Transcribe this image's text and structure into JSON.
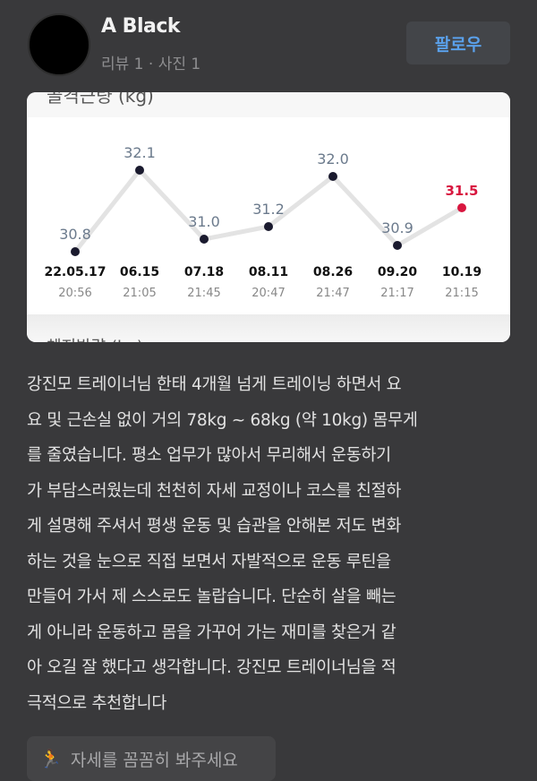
{
  "profile": {
    "name": "A Black",
    "meta": "리뷰 1 · 사진 1",
    "follow_label": "팔로우"
  },
  "chart_card": {
    "top_title": "골격근량 (kg)",
    "bottom_title": "체지방량 (kg)"
  },
  "chart_data": {
    "type": "line",
    "categories": [
      "22.05.17",
      "06.15",
      "07.18",
      "08.11",
      "08.26",
      "09.20",
      "10.19"
    ],
    "times": [
      "20:56",
      "21:05",
      "21:45",
      "20:47",
      "21:47",
      "21:17",
      "21:15"
    ],
    "values": [
      30.8,
      32.1,
      31.0,
      31.2,
      32.0,
      30.9,
      31.5
    ],
    "value_labels": [
      "30.8",
      "32.1",
      "31.0",
      "31.2",
      "32.0",
      "30.9",
      "31.5"
    ],
    "highlight_index": 6,
    "colors": {
      "point": "#1a1a2e",
      "highlight": "#d8163f",
      "line": "#e3e3e3",
      "label": "#6b7a8c"
    }
  },
  "review": {
    "lines": [
      "강진모 트레이너님 한태 4개월 넘게 트레이닝 하면서 요",
      "요 및 근손실 없이 거의 78kg ~ 68kg (약 10kg) 몸무게",
      "를 줄였습니다. 평소 업무가 많아서 무리해서 운동하기",
      "가 부담스러웠는데 천천히 자세 교정이나 코스를 친절하",
      "게 설명해 주셔서 평생 운동 및 습관을 안해본 저도 변화",
      "하는 것을 눈으로 직접 보면서 자발적으로 운동 루틴을",
      "만들어 가서 제 스스로도 놀랍습니다. 단순히 살을 빼는",
      "게 아니라 운동하고 몸을 가꾸어 가는 재미를 찾은거 같",
      "아 오길 잘 했다고 생각합니다. 강진모 트레이너님을 적",
      "극적으로 추천합니다"
    ]
  },
  "tag": {
    "icon": "lunge-person-icon",
    "label": "자세를 꼼꼼히 봐주세요"
  }
}
